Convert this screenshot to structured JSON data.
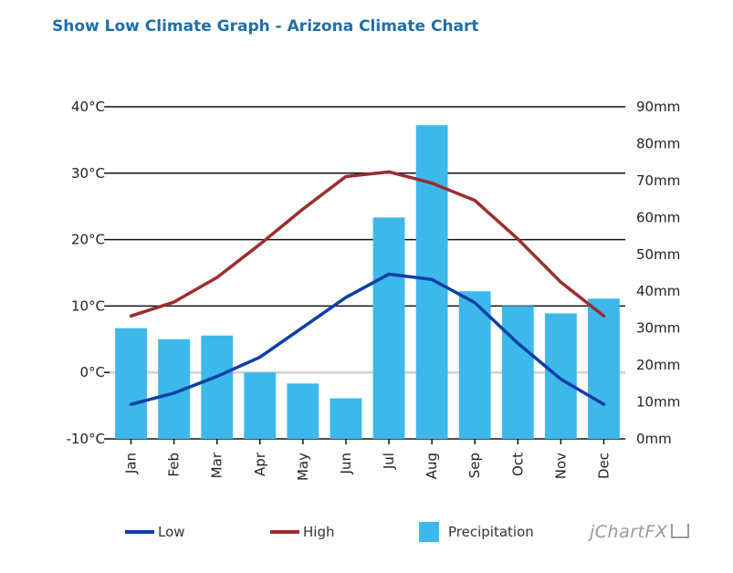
{
  "title": "Show Low Climate Graph - Arizona Climate Chart",
  "brand": "jChartFX",
  "colors": {
    "title": "#1f6fa8",
    "low": "#0a3fa8",
    "high": "#9b2d30",
    "precipitation": "#3db8ea",
    "grid": "#111111",
    "zero_line": "#d6d6d6"
  },
  "legend": {
    "low": "Low",
    "high": "High",
    "precipitation": "Precipitation"
  },
  "chart_data": {
    "type": "bar",
    "categories": [
      "Jan",
      "Feb",
      "Mar",
      "Apr",
      "May",
      "Jun",
      "Jul",
      "Aug",
      "Sep",
      "Oct",
      "Nov",
      "Dec"
    ],
    "series": [
      {
        "name": "Low",
        "type": "line",
        "axis": "left",
        "unit": "°C",
        "values": [
          -4.8,
          -3.1,
          -0.6,
          2.3,
          6.8,
          11.3,
          14.8,
          14.0,
          10.5,
          4.4,
          -1.0,
          -4.8
        ]
      },
      {
        "name": "High",
        "type": "line",
        "axis": "left",
        "unit": "°C",
        "values": [
          8.5,
          10.6,
          14.3,
          19.3,
          24.6,
          29.5,
          30.2,
          28.5,
          25.9,
          20.1,
          13.6,
          8.5
        ]
      },
      {
        "name": "Precipitation",
        "type": "bar",
        "axis": "right",
        "unit": "mm",
        "values": [
          30,
          27,
          28,
          18,
          15,
          11,
          60,
          85,
          40,
          36,
          34,
          38
        ]
      }
    ],
    "y_left": {
      "ylim": [
        -10,
        40
      ],
      "ticks": [
        "-10°C",
        "0°C",
        "10°C",
        "20°C",
        "30°C",
        "40°C"
      ],
      "tick_values": [
        -10,
        0,
        10,
        20,
        30,
        40
      ]
    },
    "y_right": {
      "ylim": [
        0,
        90
      ],
      "ticks": [
        "0mm",
        "10mm",
        "20mm",
        "30mm",
        "40mm",
        "50mm",
        "60mm",
        "70mm",
        "80mm",
        "90mm"
      ],
      "tick_values": [
        0,
        10,
        20,
        30,
        40,
        50,
        60,
        70,
        80,
        90
      ]
    },
    "grid": true,
    "legend_position": "bottom"
  }
}
